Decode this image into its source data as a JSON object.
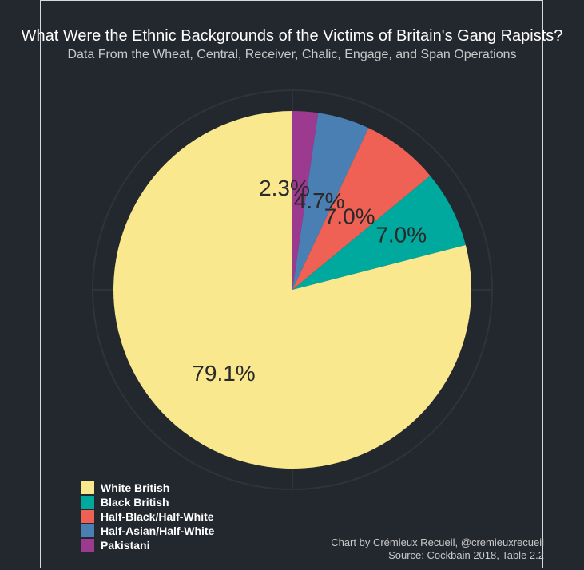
{
  "chart_data": {
    "type": "pie",
    "title": "What Were the Ethnic Backgrounds of the Victims of Britain's Gang Rapists?",
    "subtitle": "Data From the Wheat, Central, Receiver, Chalic, Engage, and Span Operations",
    "slices": [
      {
        "label": "Pakistani",
        "value": 2.3,
        "display": "2.3%",
        "color": "#9b3a8f"
      },
      {
        "label": "Half-Asian/Half-White",
        "value": 4.7,
        "display": "4.7%",
        "color": "#4a7fb3"
      },
      {
        "label": "Half-Black/Half-White",
        "value": 7.0,
        "display": "7.0%",
        "color": "#ef6055"
      },
      {
        "label": "Black British",
        "value": 7.0,
        "display": "7.0%",
        "color": "#00a99d"
      },
      {
        "label": "White British",
        "value": 79.1,
        "display": "79.1%",
        "color": "#fae88e"
      }
    ],
    "legend_order": [
      "White British",
      "Black British",
      "Half-Black/Half-White",
      "Half-Asian/Half-White",
      "Pakistani"
    ],
    "legend_position": "bottom-left",
    "grid": true
  },
  "caption": {
    "line1": "Chart by Crémieux Recueil, @cremieuxrecueil",
    "line2": "Source: Cockbain 2018, Table 2.2"
  },
  "colors": {
    "background": "#23272e",
    "text": "#ffffff",
    "muted_text": "#c8c8c8",
    "grid": "#2f343c",
    "label_text": "#2a2a2a"
  }
}
